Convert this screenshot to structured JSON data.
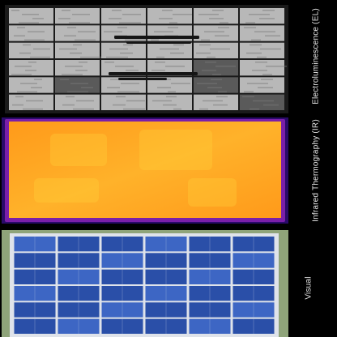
{
  "labels": {
    "electroluminescence": "Electroluminescence (EL)",
    "infrared": "Infrared Thermography (IR)",
    "visual": "Visual"
  },
  "colors": {
    "background": "#000000",
    "el_cell_light": "#b8b8b8",
    "el_cell_dark": "#5a5a5a",
    "el_crack": "#151515",
    "ir_hot": "#ffd23a",
    "ir_warm": "#ff9a1a",
    "ir_edge": "#7a1fa8",
    "ir_cold": "#2a0a6a",
    "pv_cell": "#2a4fa8",
    "pv_cell_light": "#3d66c4",
    "pv_frame": "#dfe3ea",
    "grass": "#8fa47a"
  },
  "grid": {
    "el_columns": 6,
    "el_rows": 6,
    "pv_columns": 6,
    "pv_rows": 6
  }
}
